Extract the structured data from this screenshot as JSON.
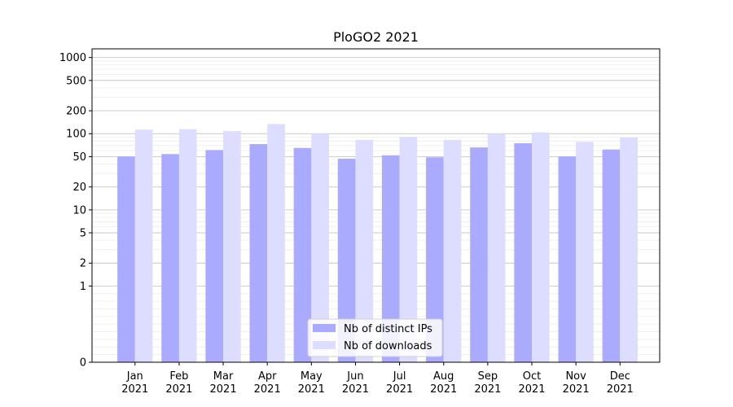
{
  "chart_data": {
    "type": "bar",
    "title": "PloGO2 2021",
    "xlabel": "",
    "ylabel": "",
    "y_scale": "symlog",
    "ylim": [
      0,
      1300
    ],
    "y_ticks": [
      0,
      1,
      2,
      5,
      10,
      20,
      50,
      100,
      200,
      500,
      1000
    ],
    "categories": [
      "Jan\n2021",
      "Feb\n2021",
      "Mar\n2021",
      "Apr\n2021",
      "May\n2021",
      "Jun\n2021",
      "Jul\n2021",
      "Aug\n2021",
      "Sep\n2021",
      "Oct\n2021",
      "Nov\n2021",
      "Dec\n2021"
    ],
    "category_lines": [
      [
        "Jan",
        "2021"
      ],
      [
        "Feb",
        "2021"
      ],
      [
        "Mar",
        "2021"
      ],
      [
        "Apr",
        "2021"
      ],
      [
        "May",
        "2021"
      ],
      [
        "Jun",
        "2021"
      ],
      [
        "Jul",
        "2021"
      ],
      [
        "Aug",
        "2021"
      ],
      [
        "Sep",
        "2021"
      ],
      [
        "Oct",
        "2021"
      ],
      [
        "Nov",
        "2021"
      ],
      [
        "Dec",
        "2021"
      ]
    ],
    "series": [
      {
        "name": "Nb of distinct IPs",
        "color": "#aaaaff",
        "values": [
          50,
          54,
          61,
          73,
          65,
          47,
          52,
          49,
          66,
          75,
          50,
          62
        ]
      },
      {
        "name": "Nb of downloads",
        "color": "#ddddff",
        "values": [
          113,
          115,
          108,
          134,
          100,
          83,
          91,
          83,
          100,
          104,
          78,
          89
        ]
      }
    ],
    "grid": true,
    "legend_position": "bottom-center"
  }
}
